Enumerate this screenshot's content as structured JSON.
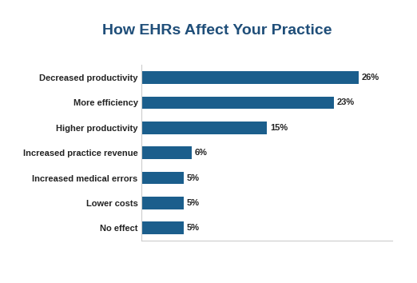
{
  "chart_data": {
    "type": "bar",
    "orientation": "horizontal",
    "title": "How EHRs Affect Your Practice",
    "categories": [
      "Decreased productivity",
      "More efficiency",
      "Higher productivity",
      "Increased practice revenue",
      "Increased medical errors",
      "Lower costs",
      "No effect"
    ],
    "values": [
      26,
      23,
      15,
      6,
      5,
      5,
      5
    ],
    "value_labels": [
      "26%",
      "23%",
      "15%",
      "6%",
      "5%",
      "5%",
      "5%"
    ],
    "data_labels": true,
    "color": "#1b5e8c",
    "xlim": [
      0,
      30
    ],
    "xticks": [],
    "tick_labels": "y",
    "grid": false
  }
}
